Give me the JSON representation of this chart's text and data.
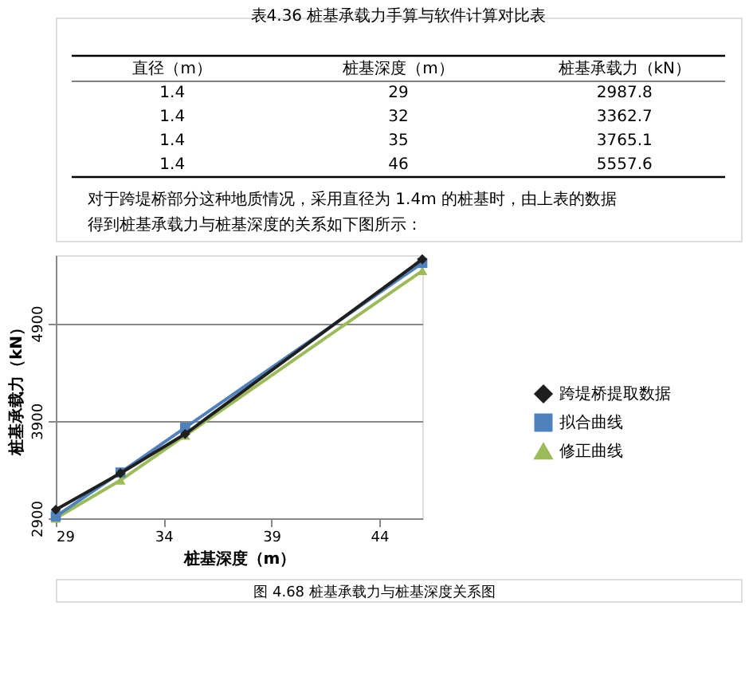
{
  "chart_data": {
    "type": "line",
    "title": "表4.36   桩基承载力手算与软件计算对比表",
    "annotations": [
      "直径（m）",
      "桩基深度（m）",
      "桩基承载力（kN）",
      "1.4",
      "29",
      "2987.8",
      "1.4",
      "32",
      "3362.7",
      "1.4",
      "35",
      "3765.1",
      "1.4",
      "46",
      "5557.6",
      "对于跨堤桥部分这种地质情况，采用直径为 1.4m 的桩基时，由上表的数据",
      "得到桩基承载力与桩基深度的关系如下图所示：",
      "图 4.68   桩基承载力与桩基深度关系图"
    ],
    "x": [
      29,
      32,
      35,
      46
    ],
    "series": [
      {
        "name": "跨堤桥提取数据",
        "color": "#1f1f1f",
        "marker": "diamond",
        "values": [
          2987.8,
          3362.7,
          3765.1,
          5557.6
        ]
      },
      {
        "name": "拟合曲线",
        "color": "#4f81bd",
        "marker": "square",
        "values": [
          2920,
          3370,
          3830,
          5520
        ]
      },
      {
        "name": "修正曲线",
        "color": "#9bbb59",
        "marker": "triangle",
        "values": [
          2900,
          3290,
          3750,
          5440
        ]
      }
    ],
    "xlabel": "桩基深度（m）",
    "ylabel": "桩基承载力（kN）",
    "xlim": [
      29,
      46
    ],
    "xticks": [
      29,
      34,
      39,
      44
    ],
    "ylim": [
      2900,
      5600
    ],
    "yticks": [
      2900,
      3900,
      4900
    ],
    "grid": "y",
    "legend": "right",
    "line_style": "solid"
  }
}
